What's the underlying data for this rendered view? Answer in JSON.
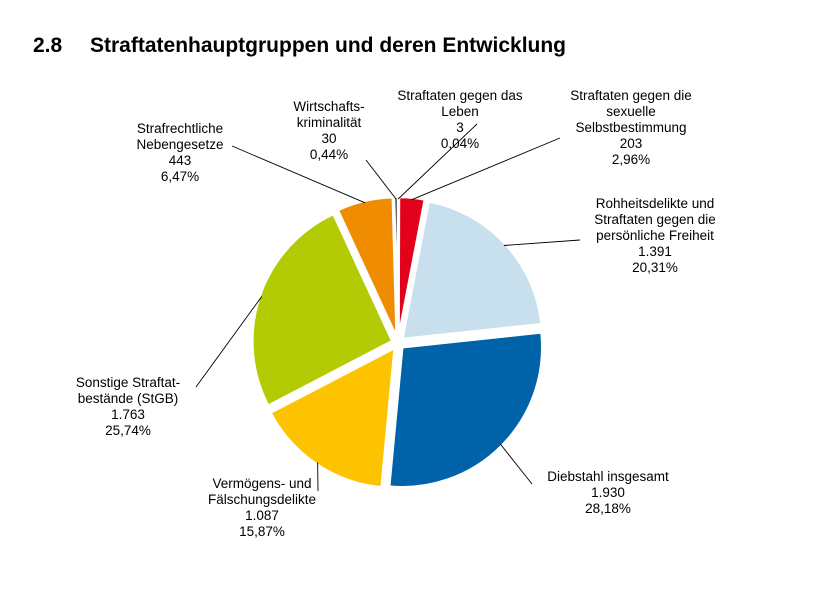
{
  "heading": {
    "number": "2.8",
    "title": "Straftatenhauptgruppen und deren Entwicklung"
  },
  "chart_data": {
    "type": "pie",
    "title": "",
    "slices": [
      {
        "label_lines": [
          "Straftaten gegen das",
          "Leben"
        ],
        "value": 3,
        "value_text": "3",
        "percent_text": "0,04%",
        "color": "#7f1a12"
      },
      {
        "label_lines": [
          "Straftaten gegen die",
          "sexuelle",
          "Selbstbestimmung"
        ],
        "value": 203,
        "value_text": "203",
        "percent_text": "2,96%",
        "color": "#e2001a"
      },
      {
        "label_lines": [
          "Rohheitsdelikte und",
          "Straftaten gegen die",
          "persönliche Freiheit"
        ],
        "value": 1391,
        "value_text": "1.391",
        "percent_text": "20,31%",
        "color": "#c8dfee"
      },
      {
        "label_lines": [
          "Diebstahl insgesamt"
        ],
        "value": 1930,
        "value_text": "1.930",
        "percent_text": "28,18%",
        "color": "#0062a8"
      },
      {
        "label_lines": [
          "Vermögens- und",
          "Fälschungsdelikte"
        ],
        "value": 1087,
        "value_text": "1.087",
        "percent_text": "15,87%",
        "color": "#fec300"
      },
      {
        "label_lines": [
          "Sonstige Straftat-",
          "bestände (StGB)"
        ],
        "value": 1763,
        "value_text": "1.763",
        "percent_text": "25,74%",
        "color": "#b3cb04"
      },
      {
        "label_lines": [
          "Strafrechtliche",
          "Nebengesetze"
        ],
        "value": 443,
        "value_text": "443",
        "percent_text": "6,47%",
        "color": "#f08c00"
      },
      {
        "label_lines": [
          "Wirtschafts-",
          "kriminalität"
        ],
        "value": 30,
        "value_text": "30",
        "percent_text": "0,44%",
        "color": "#1c1c1c"
      }
    ]
  }
}
